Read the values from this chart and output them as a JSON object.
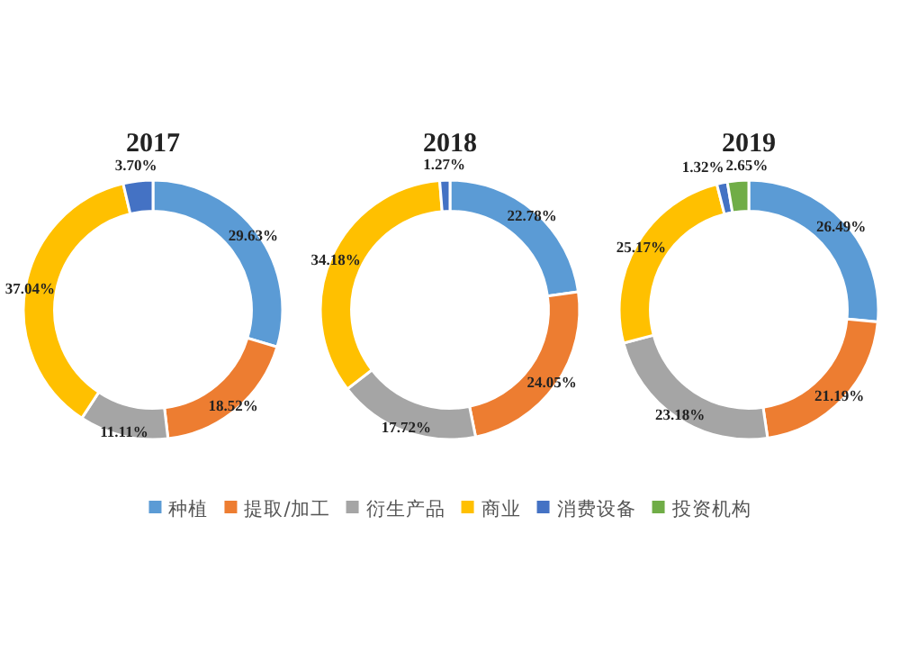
{
  "chart_data": [
    {
      "type": "donut",
      "title": "2017",
      "categories": [
        "种植",
        "提取/加工",
        "衍生产品",
        "商业",
        "消费设备",
        "投资机构"
      ],
      "values": [
        29.63,
        18.52,
        11.11,
        37.04,
        3.7,
        null
      ],
      "colors": [
        "#5b9bd5",
        "#ed7d31",
        "#a5a5a5",
        "#ffc000",
        "#4472c4",
        "#70ad47"
      ],
      "value_labels": [
        "29.63%",
        "18.52%",
        "11.11%",
        "37.04%",
        "3.70%",
        null
      ],
      "legend": "bottom"
    },
    {
      "type": "donut",
      "title": "2018",
      "categories": [
        null,
        null,
        null,
        null,
        null
      ],
      "values": [
        22.78,
        24.05,
        17.72,
        34.18,
        1.27
      ],
      "colors": [
        "#5b9bd5",
        "#ed7d31",
        "#a5a5a5",
        "#ffc000",
        "#4472c4"
      ],
      "value_labels": [
        "22.78%",
        "24.05%",
        "17.72%",
        "34.18%",
        "1.27%"
      ]
    },
    {
      "type": "donut",
      "title": "2019",
      "categories": [
        null,
        null,
        null,
        null,
        null,
        null
      ],
      "values": [
        26.49,
        21.19,
        23.18,
        25.17,
        1.32,
        2.65
      ],
      "colors": [
        "#5b9bd5",
        "#ed7d31",
        "#a5a5a5",
        "#ffc000",
        "#4472c4",
        "#70ad47"
      ],
      "value_labels": [
        "26.49%",
        "21.19%",
        "23.18%",
        "25.17%",
        "1.32%",
        "2.65%"
      ]
    }
  ]
}
